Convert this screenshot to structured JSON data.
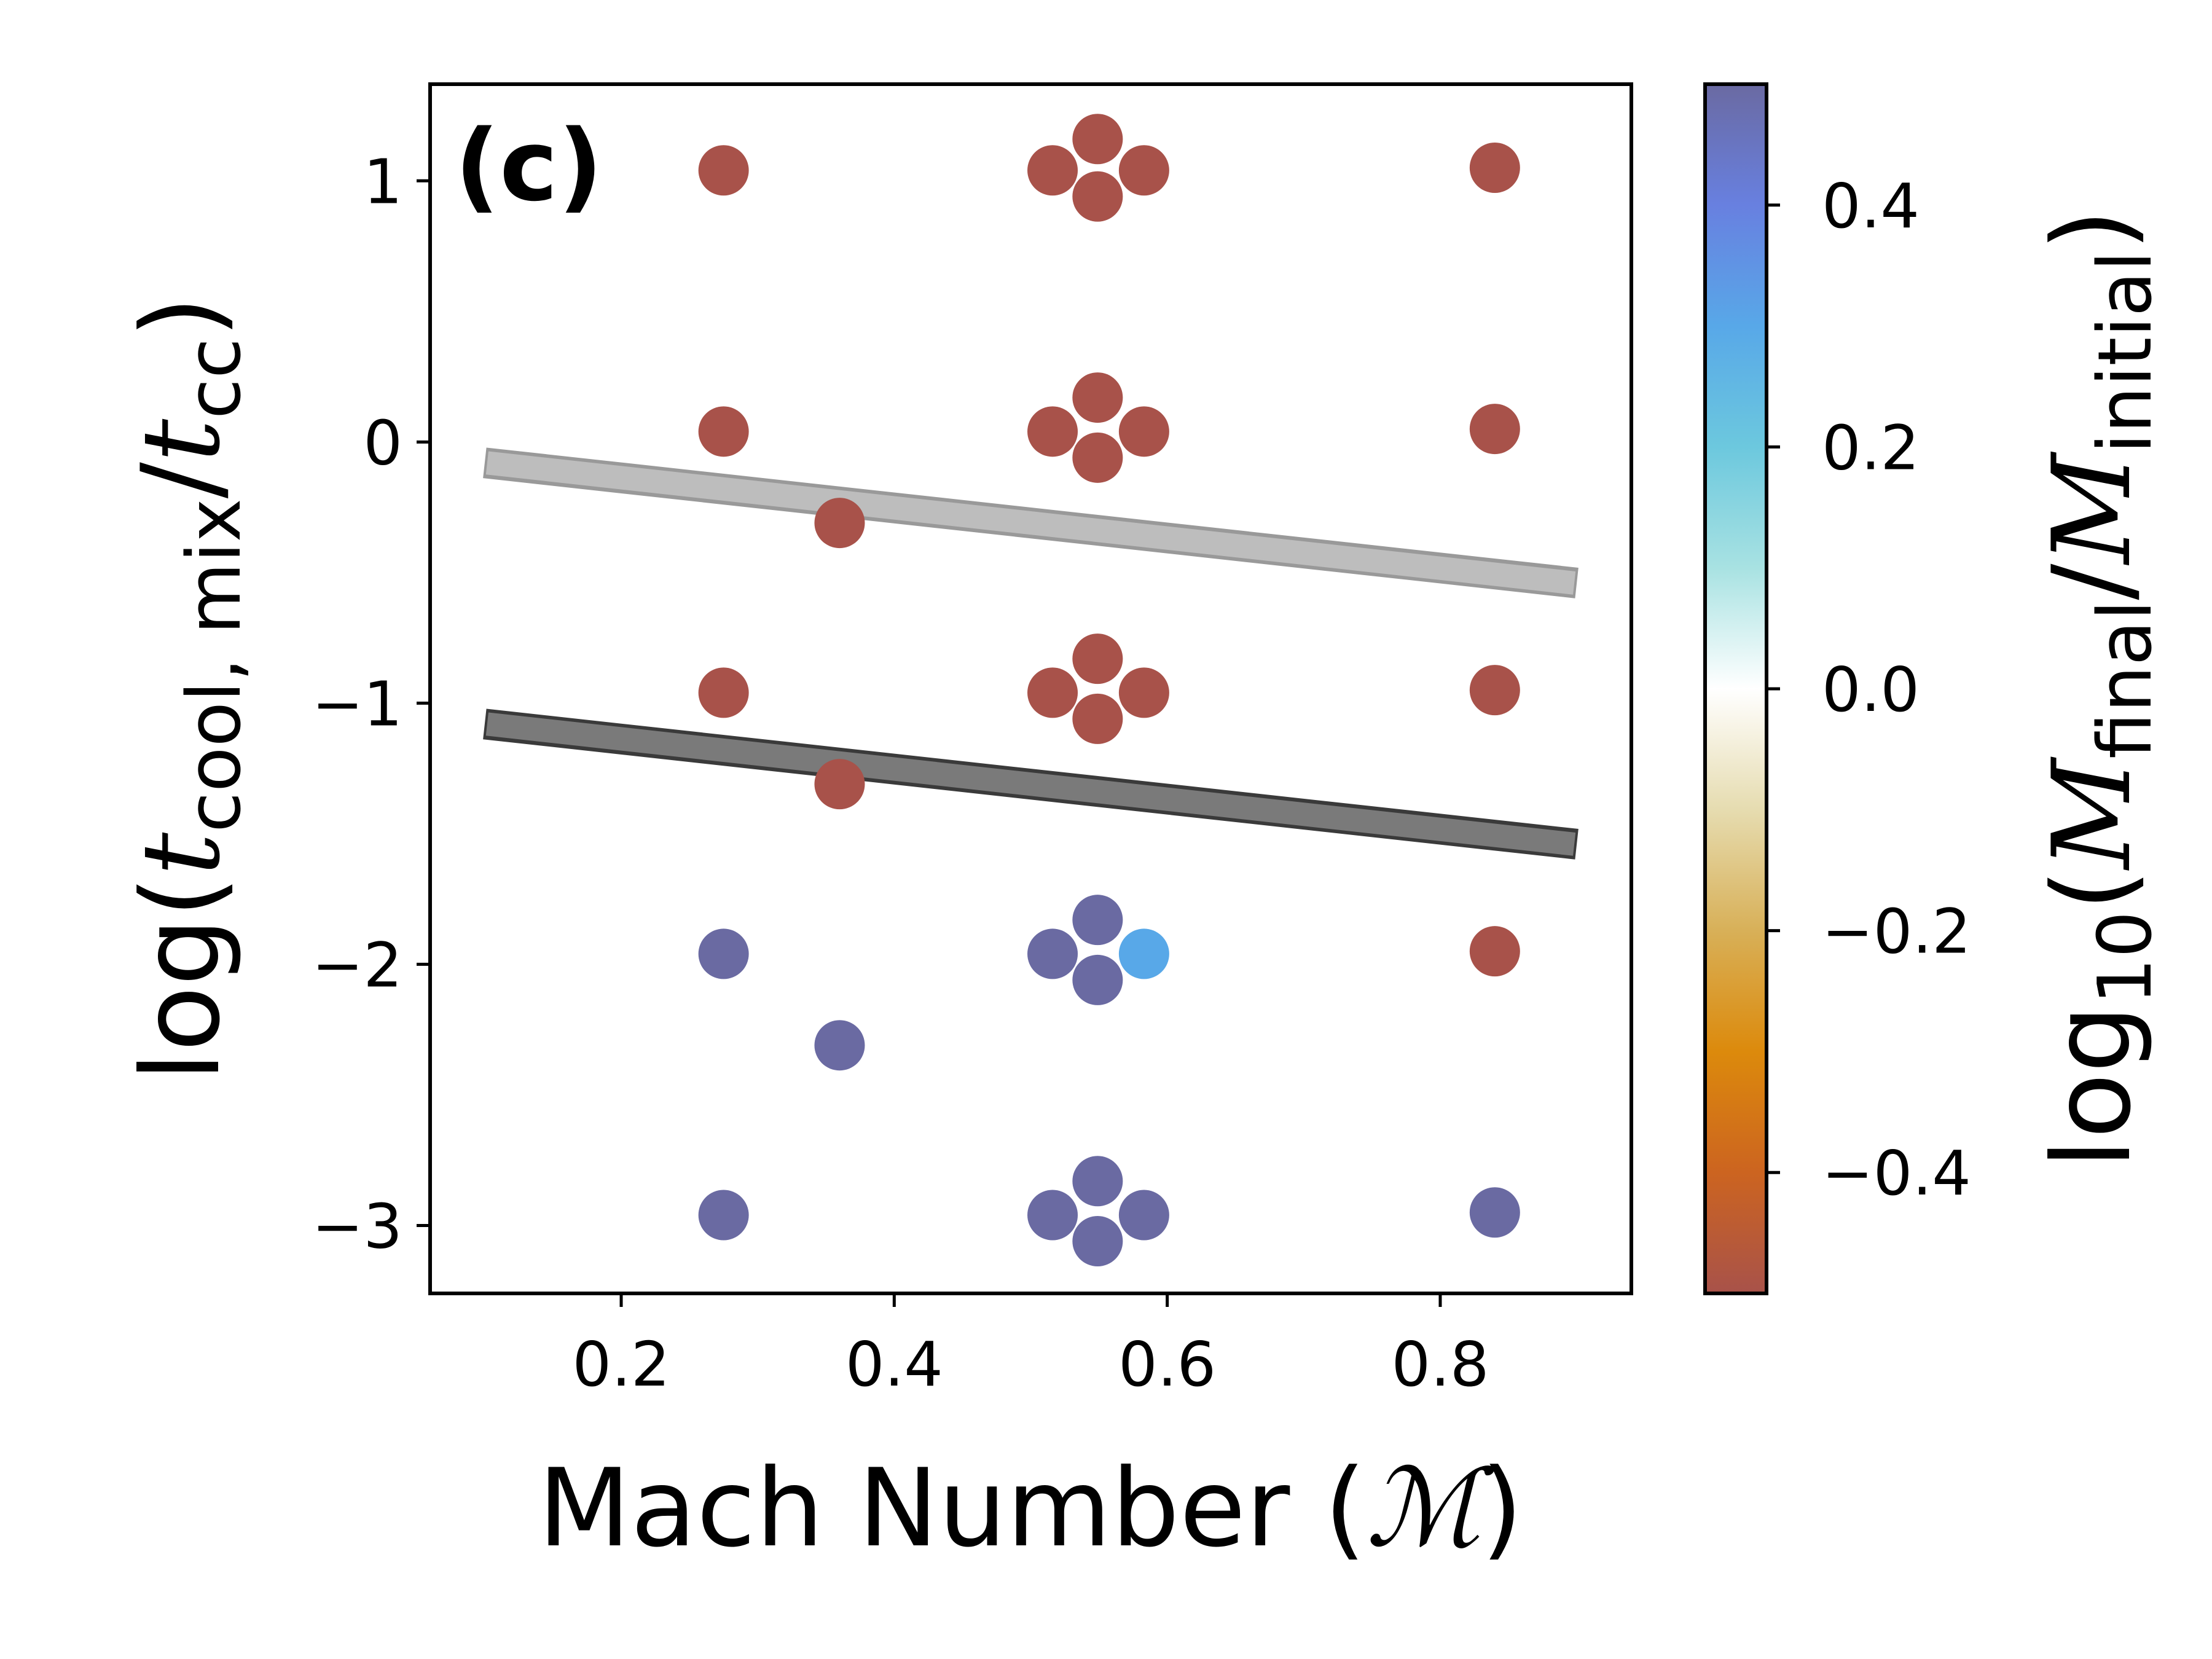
{
  "chart_data": {
    "type": "scatter",
    "panel_label": "(c)",
    "xlabel": "Mach Number (ℳ)",
    "ylabel": "log(t_cool,mix/t_cc)",
    "xlim": [
      0.06,
      0.94
    ],
    "ylim": [
      -3.26,
      1.37
    ],
    "x_ticks": [
      0.2,
      0.4,
      0.6,
      0.8
    ],
    "x_tick_labels": [
      "0.2",
      "0.4",
      "0.6",
      "0.8"
    ],
    "y_ticks": [
      1,
      0,
      -1,
      -2,
      -3
    ],
    "y_tick_labels": [
      "1",
      "0",
      "−1",
      "−2",
      "−3"
    ],
    "grid": false,
    "colorbar": {
      "label": "log10(M_final/M_initial)",
      "range": [
        -0.5,
        0.5
      ],
      "ticks": [
        0.4,
        0.2,
        0.0,
        -0.2,
        -0.4
      ],
      "tick_labels": [
        "0.4",
        "0.2",
        "0.0",
        "−0.2",
        "−0.4"
      ],
      "stops": [
        {
          "v": -0.5,
          "color": "#a8524a"
        },
        {
          "v": -0.4,
          "color": "#cc6420"
        },
        {
          "v": -0.3,
          "color": "#dc8a0c"
        },
        {
          "v": -0.2,
          "color": "#d8b058"
        },
        {
          "v": -0.1,
          "color": "#e6dcb0"
        },
        {
          "v": 0.0,
          "color": "#ffffff"
        },
        {
          "v": 0.1,
          "color": "#a8e2e2"
        },
        {
          "v": 0.2,
          "color": "#6cc8de"
        },
        {
          "v": 0.3,
          "color": "#58a8e8"
        },
        {
          "v": 0.4,
          "color": "#6880e0"
        },
        {
          "v": 0.5,
          "color": "#6a6aa2"
        }
      ]
    },
    "lines": [
      {
        "x": [
          0.1,
          0.9
        ],
        "y": [
          -0.08,
          -0.54
        ],
        "color": "#bdbdbd",
        "edge": "#999999"
      },
      {
        "x": [
          0.1,
          0.9
        ],
        "y": [
          -1.08,
          -1.54
        ],
        "color": "#7a7a7a",
        "edge": "#3a3a3a"
      }
    ],
    "points": [
      {
        "x": 0.275,
        "y": 1.04,
        "value": -0.5
      },
      {
        "x": 0.516,
        "y": 1.04,
        "value": -0.5
      },
      {
        "x": 0.549,
        "y": 1.16,
        "value": -0.5
      },
      {
        "x": 0.583,
        "y": 1.04,
        "value": -0.5
      },
      {
        "x": 0.549,
        "y": 0.94,
        "value": -0.5
      },
      {
        "x": 0.84,
        "y": 1.05,
        "value": -0.5
      },
      {
        "x": 0.275,
        "y": 0.04,
        "value": -0.5
      },
      {
        "x": 0.516,
        "y": 0.04,
        "value": -0.5
      },
      {
        "x": 0.549,
        "y": 0.17,
        "value": -0.5
      },
      {
        "x": 0.583,
        "y": 0.04,
        "value": -0.5
      },
      {
        "x": 0.549,
        "y": -0.06,
        "value": -0.5
      },
      {
        "x": 0.84,
        "y": 0.05,
        "value": -0.5
      },
      {
        "x": 0.36,
        "y": -0.31,
        "value": -0.5
      },
      {
        "x": 0.275,
        "y": -0.96,
        "value": -0.5
      },
      {
        "x": 0.516,
        "y": -0.96,
        "value": -0.5
      },
      {
        "x": 0.549,
        "y": -0.83,
        "value": -0.5
      },
      {
        "x": 0.583,
        "y": -0.96,
        "value": -0.5
      },
      {
        "x": 0.549,
        "y": -1.06,
        "value": -0.5
      },
      {
        "x": 0.84,
        "y": -0.95,
        "value": -0.5
      },
      {
        "x": 0.36,
        "y": -1.31,
        "value": -0.5
      },
      {
        "x": 0.275,
        "y": -1.96,
        "value": 0.5
      },
      {
        "x": 0.516,
        "y": -1.96,
        "value": 0.5
      },
      {
        "x": 0.549,
        "y": -1.83,
        "value": 0.5
      },
      {
        "x": 0.583,
        "y": -1.96,
        "value": 0.3
      },
      {
        "x": 0.549,
        "y": -2.06,
        "value": 0.5
      },
      {
        "x": 0.84,
        "y": -1.95,
        "value": -0.5
      },
      {
        "x": 0.36,
        "y": -2.31,
        "value": 0.5
      },
      {
        "x": 0.275,
        "y": -2.96,
        "value": 0.5
      },
      {
        "x": 0.516,
        "y": -2.96,
        "value": 0.5
      },
      {
        "x": 0.549,
        "y": -2.83,
        "value": 0.5
      },
      {
        "x": 0.583,
        "y": -2.96,
        "value": 0.5
      },
      {
        "x": 0.549,
        "y": -3.06,
        "value": 0.5
      },
      {
        "x": 0.84,
        "y": -2.95,
        "value": 0.5
      }
    ]
  }
}
